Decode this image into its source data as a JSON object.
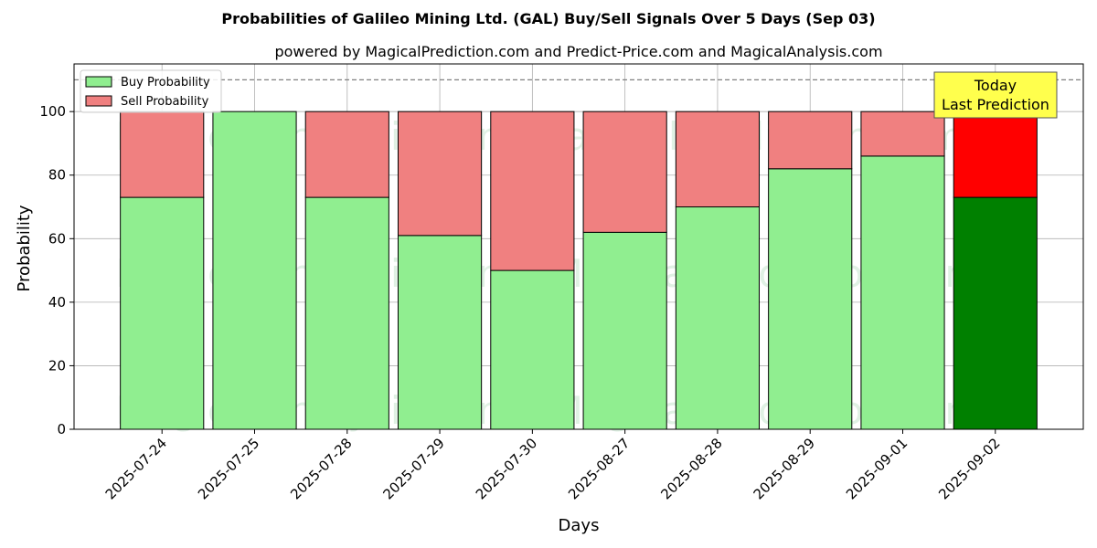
{
  "chart_data": {
    "type": "bar",
    "stacked": true,
    "title": "Probabilities of Galileo Mining Ltd. (GAL) Buy/Sell Signals Over 5 Days (Sep 03)",
    "subtitle": "powered by MagicalPrediction.com and Predict-Price.com and MagicalAnalysis.com",
    "xlabel": "Days",
    "ylabel": "Probability",
    "ylim": [
      0,
      115
    ],
    "yticks": [
      0,
      20,
      40,
      60,
      80,
      100
    ],
    "grid": true,
    "legend_position": "top-left",
    "reference_line": 110,
    "categories": [
      "2025-07-24",
      "2025-07-25",
      "2025-07-28",
      "2025-07-29",
      "2025-07-30",
      "2025-08-27",
      "2025-08-28",
      "2025-08-29",
      "2025-09-01",
      "2025-09-02"
    ],
    "series": [
      {
        "name": "Buy Probability",
        "values": [
          73,
          100,
          73,
          61,
          50,
          62,
          70,
          82,
          86,
          73
        ],
        "color": "#90ee90",
        "highlight_color": "#008000"
      },
      {
        "name": "Sell Probability",
        "values": [
          27,
          0,
          27,
          39,
          50,
          38,
          30,
          18,
          14,
          27
        ],
        "color": "#f08080",
        "highlight_color": "#ff0000"
      }
    ],
    "highlight_index": 9,
    "annotation": {
      "line1": "Today",
      "line2": "Last Prediction",
      "color": "#ffff4d"
    },
    "watermarks": [
      "MagicalAnalysis.com",
      "MagicalPrediction.com",
      "MagicalAnalysis.com",
      "MagicalPrediction.com",
      "MagicalAnalysis.com",
      "MagicalPrediction.com"
    ]
  }
}
